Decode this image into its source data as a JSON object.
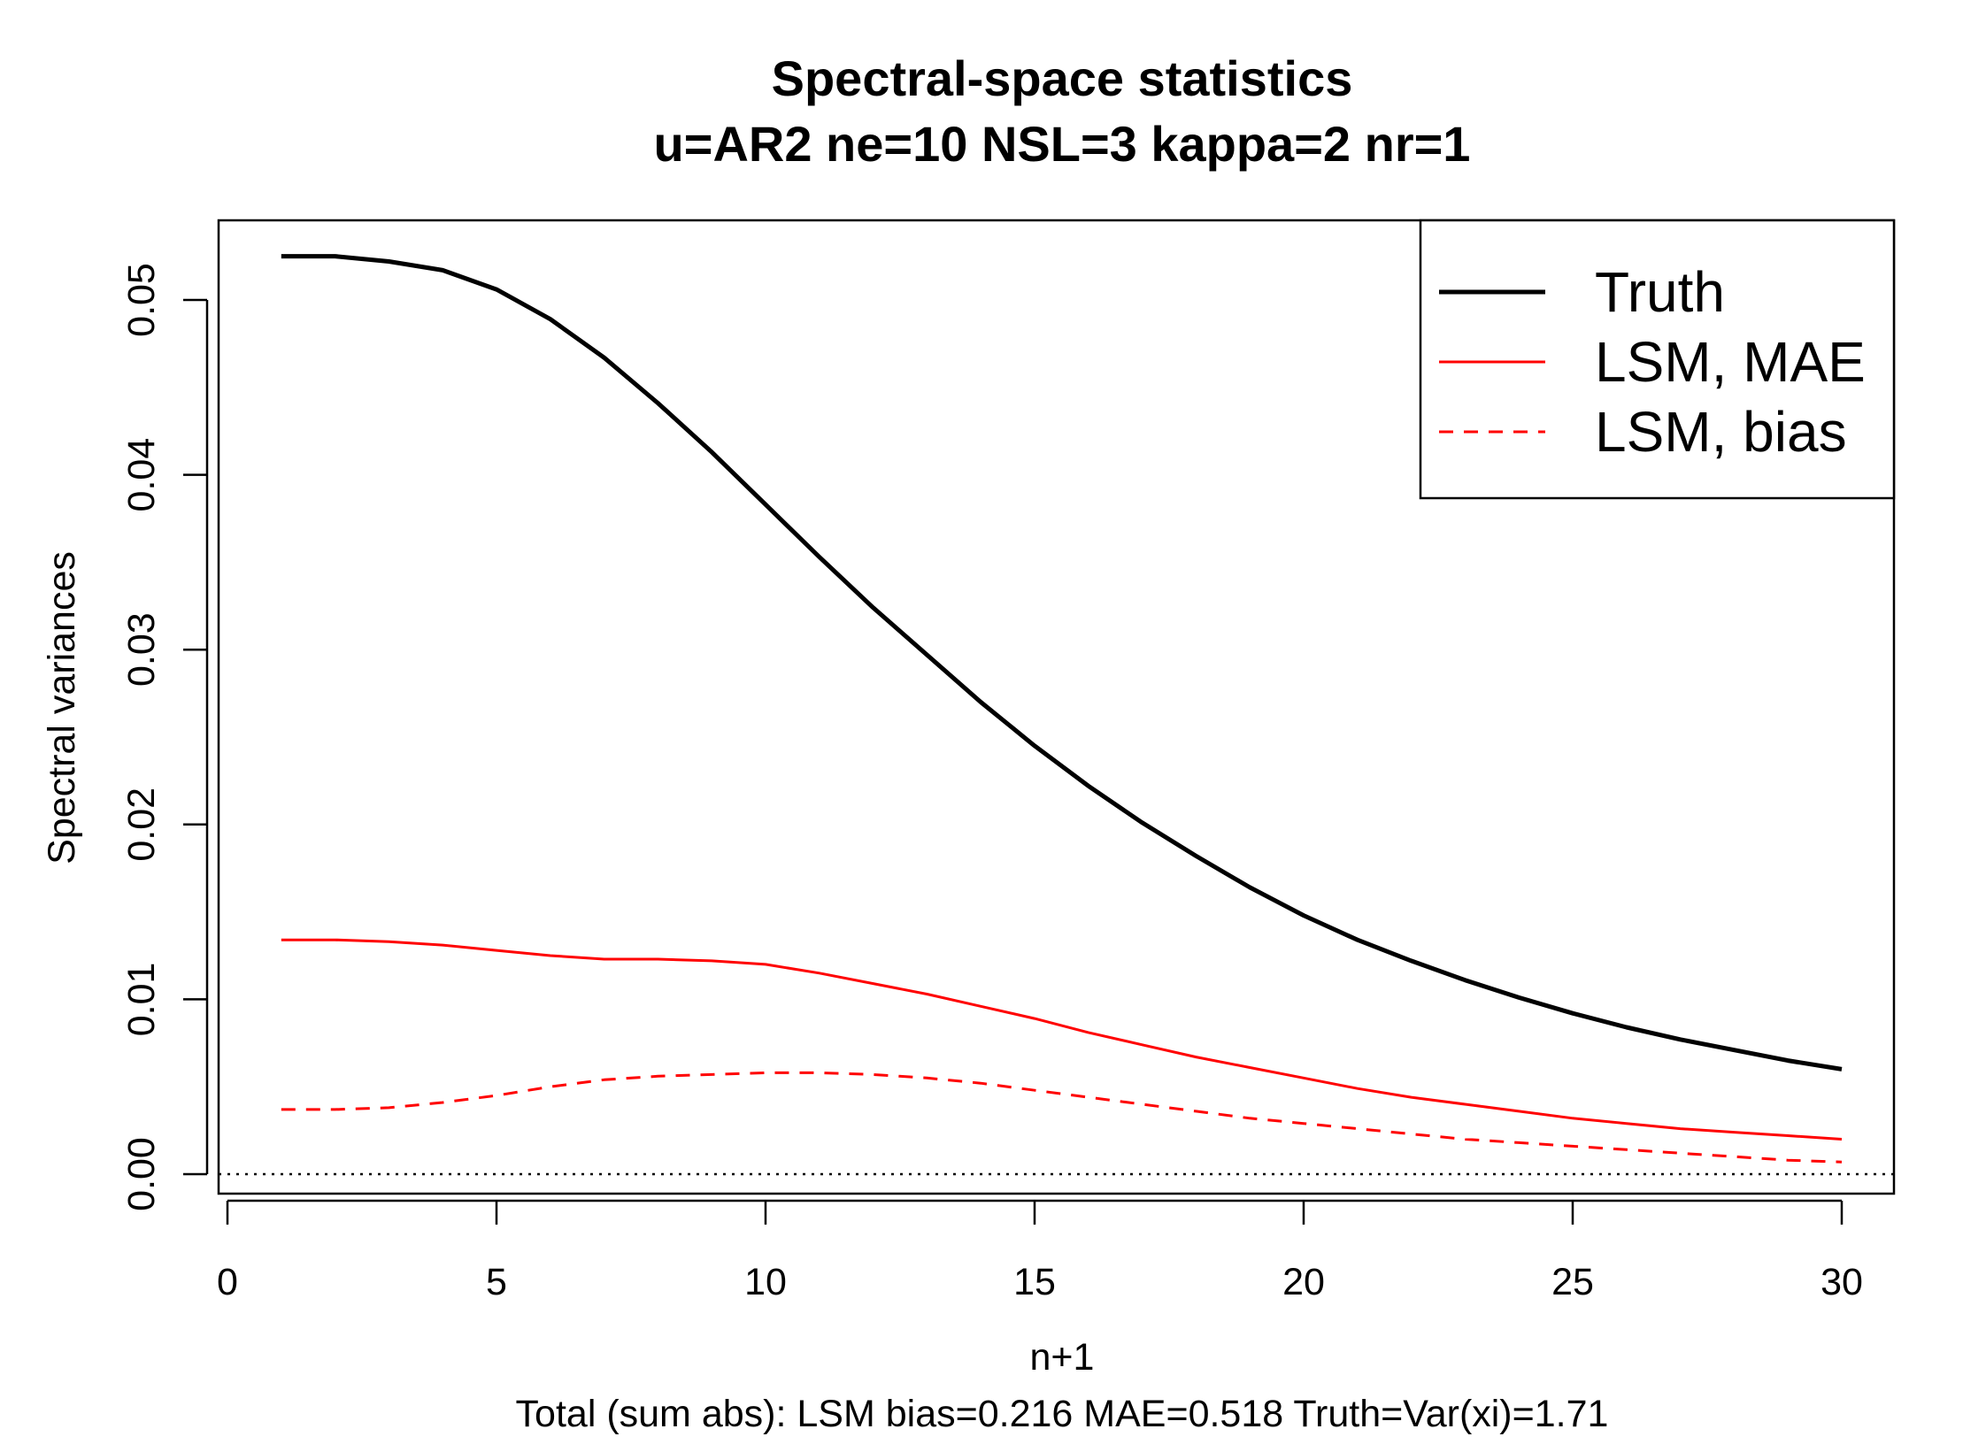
{
  "chart_data": {
    "type": "line",
    "title": "Spectral-space statistics",
    "subtitle": "u=AR2 ne=10 NSL=3 kappa=2 nr=1",
    "xlabel": "n+1",
    "ylabel": "Spectral variances",
    "footer": "Total (sum abs): LSM  bias=0.216  MAE=0.518   Truth=Var(xi)=1.71",
    "xlim": [
      0,
      30
    ],
    "ylim": [
      0,
      0.052
    ],
    "xticks": [
      0,
      5,
      10,
      15,
      20,
      25,
      30
    ],
    "xtick_labels": [
      "0",
      "5",
      "10",
      "15",
      "20",
      "25",
      "30"
    ],
    "yticks": [
      0,
      0.01,
      0.02,
      0.03,
      0.04,
      0.05
    ],
    "ytick_labels": [
      "0.00",
      "0.01",
      "0.02",
      "0.03",
      "0.04",
      "0.05"
    ],
    "legend_position": "top-right",
    "reference_line": {
      "y": 0,
      "style": "dotted",
      "color": "#000000"
    },
    "x": [
      1,
      2,
      3,
      4,
      5,
      6,
      7,
      8,
      9,
      10,
      11,
      12,
      13,
      14,
      15,
      16,
      17,
      18,
      19,
      20,
      21,
      22,
      23,
      24,
      25,
      26,
      27,
      28,
      29,
      30
    ],
    "series": [
      {
        "name": "Truth",
        "color": "#000000",
        "style": "solid",
        "values": [
          0.0525,
          0.0525,
          0.0522,
          0.0517,
          0.0506,
          0.0489,
          0.0467,
          0.0441,
          0.0413,
          0.0383,
          0.0353,
          0.0324,
          0.0297,
          0.027,
          0.0245,
          0.0222,
          0.0201,
          0.0182,
          0.0164,
          0.0148,
          0.0134,
          0.0122,
          0.0111,
          0.0101,
          0.0092,
          0.0084,
          0.0077,
          0.0071,
          0.0065,
          0.006
        ]
      },
      {
        "name": "LSM, MAE",
        "color": "#ff0000",
        "style": "solid",
        "values": [
          0.0134,
          0.0134,
          0.0133,
          0.0131,
          0.0128,
          0.0125,
          0.0123,
          0.0123,
          0.0122,
          0.012,
          0.0115,
          0.0109,
          0.0103,
          0.0096,
          0.0089,
          0.0081,
          0.0074,
          0.0067,
          0.0061,
          0.0055,
          0.0049,
          0.0044,
          0.004,
          0.0036,
          0.0032,
          0.0029,
          0.0026,
          0.0024,
          0.0022,
          0.002
        ]
      },
      {
        "name": "LSM, bias",
        "color": "#ff0000",
        "style": "dashed",
        "values": [
          0.0037,
          0.0037,
          0.0038,
          0.0041,
          0.0045,
          0.005,
          0.0054,
          0.0056,
          0.0057,
          0.0058,
          0.0058,
          0.0057,
          0.0055,
          0.0052,
          0.0048,
          0.0044,
          0.004,
          0.0036,
          0.0032,
          0.0029,
          0.0026,
          0.0023,
          0.002,
          0.0018,
          0.0016,
          0.0014,
          0.0012,
          0.001,
          0.0008,
          0.0007
        ]
      }
    ]
  }
}
